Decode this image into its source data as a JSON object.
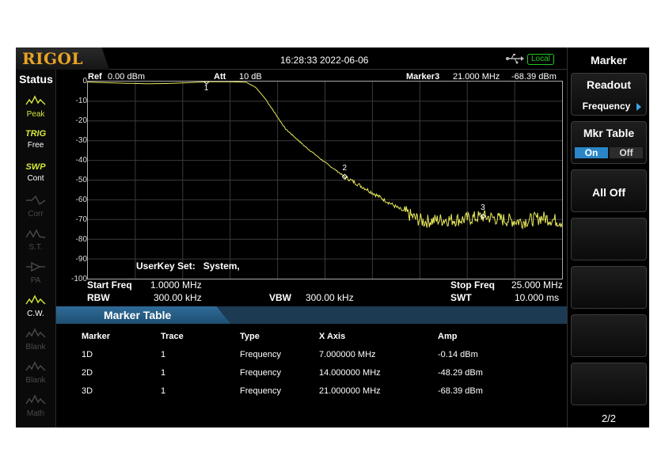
{
  "header": {
    "logo": "RIGOL",
    "datetime": "16:28:33 2022-06-06",
    "usb_icon": "usb-icon",
    "local_label": "Local"
  },
  "status": {
    "title": "Status",
    "items": [
      {
        "icon": "peak-icon",
        "label": "Peak",
        "active": true
      },
      {
        "icon_text": "TRIG",
        "label": "Free",
        "active": true
      },
      {
        "icon_text": "SWP",
        "label": "Cont",
        "active": true
      },
      {
        "icon": "corr-icon",
        "label": "Corr",
        "active": false
      },
      {
        "icon": "st-icon",
        "label": "S.T.",
        "active": false
      },
      {
        "icon": "pa-icon",
        "label": "PA",
        "active": false
      },
      {
        "icon": "cw-icon",
        "label": "C.W.",
        "active": true
      },
      {
        "icon": "blank-icon",
        "label": "Blank",
        "active": false
      },
      {
        "icon": "blank-icon",
        "label": "Blank",
        "active": false
      },
      {
        "icon": "math-icon",
        "label": "Math",
        "active": false
      }
    ]
  },
  "graph": {
    "ref_label": "Ref",
    "ref_value": "0.00 dBm",
    "att_label": "Att",
    "att_value": "10 dB",
    "marker_readout_label": "Marker3",
    "marker_readout_freq": "21.000 MHz",
    "marker_readout_amp": "-68.39 dBm",
    "y_labels": [
      "0",
      "-10",
      "-20",
      "-30",
      "-40",
      "-50",
      "-60",
      "-70",
      "-80",
      "-90",
      "-100"
    ],
    "marker_labels": [
      "1",
      "2",
      "3"
    ],
    "userkey_label": "UserKey Set:",
    "userkey_value": "System,",
    "start_freq_label": "Start Freq",
    "start_freq_value": "1.0000 MHz",
    "stop_freq_label": "Stop Freq",
    "stop_freq_value": "25.000 MHz",
    "rbw_label": "RBW",
    "rbw_value": "300.00 kHz",
    "vbw_label": "VBW",
    "vbw_value": "300.00 kHz",
    "swt_label": "SWT",
    "swt_value": "10.000 ms",
    "trace_color": "#e8e85a"
  },
  "chart_data": {
    "type": "line",
    "xlim": [
      1,
      25
    ],
    "ylim": [
      -100,
      0
    ],
    "x_unit": "MHz",
    "y_unit": "dBm",
    "x": [
      1,
      2,
      3,
      4,
      5,
      6,
      7,
      8,
      9,
      9.5,
      10,
      11,
      12,
      13,
      14,
      15,
      16,
      17,
      17.5,
      18,
      19,
      20,
      21,
      22,
      23,
      24,
      25
    ],
    "y": [
      -0.3,
      -0.6,
      -0.9,
      -1.1,
      -1.0,
      -0.6,
      -0.14,
      -0.1,
      -0.3,
      -3,
      -9,
      -24,
      -33,
      -41,
      -48.29,
      -54,
      -60,
      -66,
      -69,
      -71,
      -70,
      -70,
      -68.39,
      -70,
      -71,
      -69,
      -71
    ],
    "markers": [
      {
        "label": "1",
        "x": 7,
        "y": -0.14
      },
      {
        "label": "2",
        "x": 14,
        "y": -48.29
      },
      {
        "label": "3",
        "x": 21,
        "y": -68.39
      }
    ]
  },
  "marker_table": {
    "title": "Marker Table",
    "columns": [
      "Marker",
      "Trace",
      "Type",
      "X Axis",
      "Amp"
    ],
    "rows": [
      [
        "1D",
        "1",
        "Frequency",
        "7.000000 MHz",
        "-0.14 dBm"
      ],
      [
        "2D",
        "1",
        "Frequency",
        "14.000000 MHz",
        "-48.29 dBm"
      ],
      [
        "3D",
        "1",
        "Frequency",
        "21.000000 MHz",
        "-68.39 dBm"
      ]
    ]
  },
  "menu": {
    "title": "Marker",
    "readout_label": "Readout",
    "readout_value": "Frequency",
    "mkr_table_label": "Mkr Table",
    "on_label": "On",
    "off_label": "Off",
    "all_off_label": "All Off",
    "page": "2/2"
  }
}
